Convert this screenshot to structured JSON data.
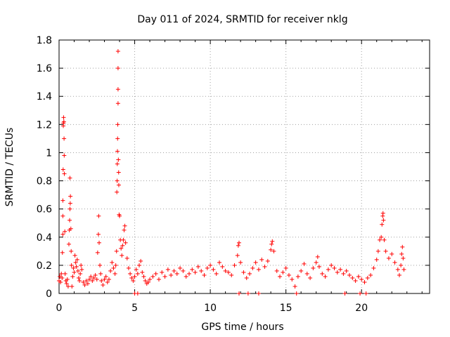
{
  "chart_data": {
    "type": "scatter",
    "title": "Day 011 of 2024, SRMTID for receiver nklg",
    "xlabel": "GPS time / hours",
    "ylabel": "SRMTID / TECUs",
    "xlim": [
      0,
      24.5
    ],
    "ylim": [
      0,
      1.8
    ],
    "xticks": [
      0,
      5,
      10,
      15,
      20
    ],
    "xtick_labels": [
      "0",
      "5",
      "10",
      "15",
      "20"
    ],
    "yticks": [
      0,
      0.2,
      0.4,
      0.6,
      0.8,
      1.0,
      1.2,
      1.4,
      1.6,
      1.8
    ],
    "ytick_labels": [
      "0",
      "0.2",
      "0.4",
      "0.6",
      "0.8",
      "1",
      "1.2",
      "1.4",
      "1.6",
      "1.8"
    ],
    "grid": true,
    "marker": "+",
    "series": [
      {
        "name": "SRMTID",
        "color": "#ff0000",
        "points": [
          [
            0.0,
            0.09
          ],
          [
            0.05,
            0.12
          ],
          [
            0.1,
            0.08
          ],
          [
            0.15,
            0.14
          ],
          [
            0.2,
            0.11
          ],
          [
            0.22,
            0.29
          ],
          [
            0.25,
            0.42
          ],
          [
            0.25,
            0.55
          ],
          [
            0.25,
            0.66
          ],
          [
            0.27,
            0.88
          ],
          [
            0.28,
            1.19
          ],
          [
            0.29,
            1.21
          ],
          [
            0.3,
            1.25
          ],
          [
            0.32,
            1.22
          ],
          [
            0.33,
            1.1
          ],
          [
            0.34,
            0.98
          ],
          [
            0.35,
            0.85
          ],
          [
            0.38,
            0.44
          ],
          [
            0.4,
            0.14
          ],
          [
            0.45,
            0.09
          ],
          [
            0.5,
            0.07
          ],
          [
            0.55,
            0.1
          ],
          [
            0.6,
            0.05
          ],
          [
            0.65,
            0.35
          ],
          [
            0.68,
            0.45
          ],
          [
            0.7,
            0.52
          ],
          [
            0.72,
            0.6
          ],
          [
            0.74,
            0.64
          ],
          [
            0.75,
            0.69
          ],
          [
            0.72,
            0.82
          ],
          [
            0.78,
            0.46
          ],
          [
            0.8,
            0.3
          ],
          [
            0.82,
            0.2
          ],
          [
            0.85,
            0.05
          ],
          [
            0.9,
            0.12
          ],
          [
            0.95,
            0.18
          ],
          [
            1.0,
            0.15
          ],
          [
            1.05,
            0.27
          ],
          [
            1.1,
            0.22
          ],
          [
            1.15,
            0.19
          ],
          [
            1.2,
            0.24
          ],
          [
            1.25,
            0.16
          ],
          [
            1.3,
            0.11
          ],
          [
            1.35,
            0.09
          ],
          [
            1.4,
            0.14
          ],
          [
            1.45,
            0.2
          ],
          [
            1.5,
            0.17
          ],
          [
            1.6,
            0.08
          ],
          [
            1.7,
            0.06
          ],
          [
            1.8,
            0.09
          ],
          [
            1.9,
            0.07
          ],
          [
            2.0,
            0.1
          ],
          [
            2.1,
            0.12
          ],
          [
            2.2,
            0.09
          ],
          [
            2.3,
            0.11
          ],
          [
            2.4,
            0.13
          ],
          [
            2.5,
            0.1
          ],
          [
            2.55,
            0.29
          ],
          [
            2.6,
            0.42
          ],
          [
            2.62,
            0.55
          ],
          [
            2.65,
            0.36
          ],
          [
            2.7,
            0.2
          ],
          [
            2.75,
            0.14
          ],
          [
            2.8,
            0.09
          ],
          [
            2.9,
            0.06
          ],
          [
            3.0,
            0.1
          ],
          [
            3.1,
            0.12
          ],
          [
            3.2,
            0.08
          ],
          [
            3.3,
            0.1
          ],
          [
            3.4,
            0.16
          ],
          [
            3.5,
            0.22
          ],
          [
            3.6,
            0.18
          ],
          [
            3.7,
            0.14
          ],
          [
            3.75,
            0.2
          ],
          [
            3.8,
            0.3
          ],
          [
            3.82,
            0.72
          ],
          [
            3.84,
            0.8
          ],
          [
            3.85,
            0.92
          ],
          [
            3.86,
            1.01
          ],
          [
            3.87,
            1.1
          ],
          [
            3.88,
            1.2
          ],
          [
            3.9,
            1.35
          ],
          [
            3.9,
            1.45
          ],
          [
            3.9,
            1.6
          ],
          [
            3.9,
            1.72
          ],
          [
            3.92,
            0.95
          ],
          [
            3.94,
            0.86
          ],
          [
            3.95,
            0.77
          ],
          [
            3.97,
            0.56
          ],
          [
            4.0,
            0.55
          ],
          [
            4.05,
            0.38
          ],
          [
            4.1,
            0.32
          ],
          [
            4.15,
            0.27
          ],
          [
            4.2,
            0.34
          ],
          [
            4.25,
            0.38
          ],
          [
            4.3,
            0.45
          ],
          [
            4.35,
            0.48
          ],
          [
            4.4,
            0.36
          ],
          [
            4.5,
            0.25
          ],
          [
            4.6,
            0.18
          ],
          [
            4.7,
            0.14
          ],
          [
            4.8,
            0.11
          ],
          [
            4.9,
            0.09
          ],
          [
            5.0,
            0.12
          ],
          [
            5.1,
            0.17
          ],
          [
            5.2,
            0.14
          ],
          [
            5.3,
            0.2
          ],
          [
            5.4,
            0.23
          ],
          [
            5.5,
            0.15
          ],
          [
            5.6,
            0.12
          ],
          [
            5.7,
            0.09
          ],
          [
            5.8,
            0.07
          ],
          [
            5.9,
            0.08
          ],
          [
            6.0,
            0.1
          ],
          [
            6.2,
            0.12
          ],
          [
            6.4,
            0.14
          ],
          [
            6.6,
            0.1
          ],
          [
            6.8,
            0.15
          ],
          [
            7.0,
            0.12
          ],
          [
            7.2,
            0.17
          ],
          [
            7.4,
            0.13
          ],
          [
            7.6,
            0.16
          ],
          [
            7.8,
            0.14
          ],
          [
            8.0,
            0.18
          ],
          [
            8.2,
            0.16
          ],
          [
            8.4,
            0.12
          ],
          [
            8.6,
            0.14
          ],
          [
            8.8,
            0.17
          ],
          [
            9.0,
            0.15
          ],
          [
            9.2,
            0.19
          ],
          [
            9.4,
            0.16
          ],
          [
            9.6,
            0.13
          ],
          [
            9.8,
            0.18
          ],
          [
            10.0,
            0.2
          ],
          [
            10.2,
            0.17
          ],
          [
            10.4,
            0.14
          ],
          [
            10.6,
            0.22
          ],
          [
            10.8,
            0.19
          ],
          [
            11.0,
            0.16
          ],
          [
            11.2,
            0.15
          ],
          [
            11.4,
            0.13
          ],
          [
            11.6,
            0.2
          ],
          [
            11.8,
            0.27
          ],
          [
            11.85,
            0.34
          ],
          [
            11.9,
            0.36
          ],
          [
            12.0,
            0.22
          ],
          [
            12.2,
            0.15
          ],
          [
            12.4,
            0.11
          ],
          [
            12.6,
            0.14
          ],
          [
            12.8,
            0.18
          ],
          [
            13.0,
            0.22
          ],
          [
            13.2,
            0.17
          ],
          [
            13.4,
            0.24
          ],
          [
            13.6,
            0.19
          ],
          [
            13.8,
            0.23
          ],
          [
            14.0,
            0.31
          ],
          [
            14.05,
            0.35
          ],
          [
            14.1,
            0.37
          ],
          [
            14.2,
            0.3
          ],
          [
            14.4,
            0.16
          ],
          [
            14.6,
            0.12
          ],
          [
            14.8,
            0.15
          ],
          [
            15.0,
            0.18
          ],
          [
            15.2,
            0.13
          ],
          [
            15.4,
            0.1
          ],
          [
            15.6,
            0.05
          ],
          [
            15.8,
            0.12
          ],
          [
            16.0,
            0.16
          ],
          [
            16.2,
            0.21
          ],
          [
            16.4,
            0.14
          ],
          [
            16.6,
            0.11
          ],
          [
            16.8,
            0.18
          ],
          [
            17.0,
            0.22
          ],
          [
            17.1,
            0.26
          ],
          [
            17.2,
            0.19
          ],
          [
            17.4,
            0.14
          ],
          [
            17.6,
            0.12
          ],
          [
            17.8,
            0.17
          ],
          [
            18.0,
            0.2
          ],
          [
            18.2,
            0.18
          ],
          [
            18.4,
            0.15
          ],
          [
            18.6,
            0.17
          ],
          [
            18.8,
            0.14
          ],
          [
            19.0,
            0.16
          ],
          [
            19.2,
            0.13
          ],
          [
            19.4,
            0.11
          ],
          [
            19.6,
            0.09
          ],
          [
            19.8,
            0.12
          ],
          [
            20.0,
            0.1
          ],
          [
            20.2,
            0.08
          ],
          [
            20.4,
            0.11
          ],
          [
            20.6,
            0.13
          ],
          [
            20.8,
            0.18
          ],
          [
            21.0,
            0.24
          ],
          [
            21.1,
            0.3
          ],
          [
            21.2,
            0.38
          ],
          [
            21.3,
            0.4
          ],
          [
            21.35,
            0.49
          ],
          [
            21.4,
            0.55
          ],
          [
            21.42,
            0.57
          ],
          [
            21.45,
            0.52
          ],
          [
            21.5,
            0.38
          ],
          [
            21.6,
            0.3
          ],
          [
            21.8,
            0.25
          ],
          [
            22.0,
            0.28
          ],
          [
            22.2,
            0.22
          ],
          [
            22.4,
            0.17
          ],
          [
            22.5,
            0.13
          ],
          [
            22.6,
            0.2
          ],
          [
            22.65,
            0.28
          ],
          [
            22.7,
            0.33
          ],
          [
            22.75,
            0.25
          ],
          [
            22.8,
            0.17
          ]
        ],
        "zero_points": [
          5.0,
          5.2,
          11.9,
          12.5,
          13.2,
          15.7,
          18.9,
          19.9,
          20.3
        ]
      }
    ]
  }
}
